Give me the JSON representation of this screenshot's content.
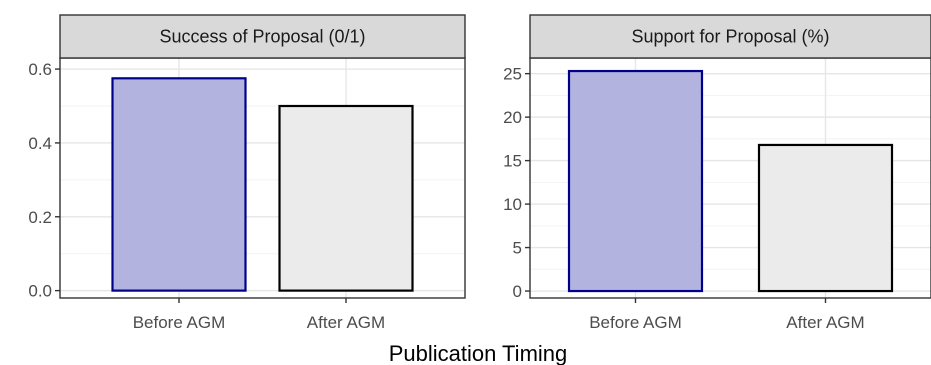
{
  "chart_data": [
    {
      "type": "bar",
      "title": "Success of Proposal (0/1)",
      "categories": [
        "Before AGM",
        "After AGM"
      ],
      "values": [
        0.575,
        0.5
      ],
      "ylim": [
        -0.02,
        0.63
      ],
      "yticks": [
        0.0,
        0.2,
        0.4,
        0.6
      ],
      "ytick_labels": [
        "0.0",
        "0.2",
        "0.4",
        "0.6"
      ],
      "grid": true
    },
    {
      "type": "bar",
      "title": "Support for Proposal (%)",
      "categories": [
        "Before AGM",
        "After AGM"
      ],
      "values": [
        25.3,
        16.8
      ],
      "ylim": [
        -0.8,
        26.8
      ],
      "yticks": [
        0,
        5,
        10,
        15,
        20,
        25
      ],
      "ytick_labels": [
        "0",
        "5",
        "10",
        "15",
        "20",
        "25"
      ],
      "grid": true
    }
  ],
  "xlabel": "Publication Timing",
  "bar_styles": [
    {
      "fill": "#b3b3e0",
      "stroke": "#00008b"
    },
    {
      "fill": "#ebebeb",
      "stroke": "#000000"
    }
  ]
}
